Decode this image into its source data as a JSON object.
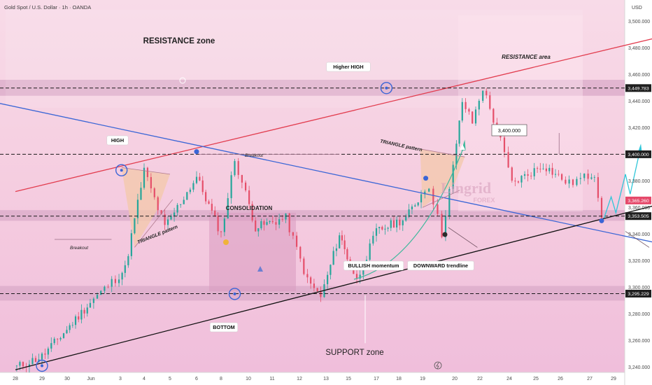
{
  "header": {
    "symbol_title": "Gold Spot / U.S. Dollar · 1h · OANDA",
    "currency": "USD"
  },
  "colors": {
    "background_pink": "#f6cfe2",
    "zone_band": "#d9a9c8",
    "bull_candle": "#26a69a",
    "bear_candle": "#e54f6a",
    "resistance_line": "#e23d4f",
    "downtrend_line": "#3b66d6",
    "support_line": "#111111",
    "marker_blue": "#3a65d6"
  },
  "chart_data": {
    "type": "candlestick",
    "x_ticks": [
      "28",
      "29",
      "30",
      "Jun",
      "3",
      "4",
      "5",
      "6",
      "8",
      "10",
      "11",
      "12",
      "13",
      "15",
      "17",
      "18",
      "19",
      "20",
      "22",
      "24",
      "25",
      "26",
      "27",
      "29"
    ],
    "y_ticks": [
      "3,500.000",
      "3,480.000",
      "3,460.000",
      "3,440.000",
      "3,420.000",
      "3,400.000",
      "3,380.000",
      "3,360.000",
      "3,340.000",
      "3,320.000",
      "3,300.000",
      "3,280.000",
      "3,260.000",
      "3,240.000"
    ],
    "ylim": [
      3236,
      3516
    ],
    "price_flags": [
      {
        "label": "3,449.783",
        "value": 3449.783,
        "style": "dark"
      },
      {
        "label": "3,400.000",
        "value": 3400.0,
        "style": "dark"
      },
      {
        "label": "3,365.260",
        "value": 3365.26,
        "style": "red"
      },
      {
        "label": "3,353.505",
        "value": 3353.505,
        "style": "dark"
      },
      {
        "label": "3,295.229",
        "value": 3295.229,
        "style": "dark"
      }
    ],
    "zones": [
      {
        "name": "resistance-band",
        "low": 3444,
        "high": 3456
      },
      {
        "name": "mid-band",
        "low": 3350,
        "high": 3358
      },
      {
        "name": "support-band",
        "low": 3290,
        "high": 3301
      }
    ],
    "key_points": [
      {
        "day": 0.05,
        "price": 3240
      },
      {
        "day": 1.0,
        "price": 3248
      },
      {
        "day": 4.2,
        "price": 3314
      },
      {
        "day": 5.0,
        "price": 3388
      },
      {
        "day": 5.8,
        "price": 3345
      },
      {
        "day": 7.0,
        "price": 3383
      },
      {
        "day": 8.0,
        "price": 3340
      },
      {
        "day": 8.5,
        "price": 3396
      },
      {
        "day": 9.3,
        "price": 3345
      },
      {
        "day": 10.5,
        "price": 3352
      },
      {
        "day": 11.3,
        "price": 3305
      },
      {
        "day": 11.8,
        "price": 3293
      },
      {
        "day": 12.6,
        "price": 3340
      },
      {
        "day": 13.3,
        "price": 3305
      },
      {
        "day": 14.0,
        "price": 3342
      },
      {
        "day": 15.3,
        "price": 3352
      },
      {
        "day": 16.2,
        "price": 3377
      },
      {
        "day": 16.6,
        "price": 3340
      },
      {
        "day": 17.3,
        "price": 3440
      },
      {
        "day": 17.7,
        "price": 3424
      },
      {
        "day": 18.1,
        "price": 3450
      },
      {
        "day": 18.7,
        "price": 3410
      },
      {
        "day": 19.1,
        "price": 3378
      },
      {
        "day": 20.3,
        "price": 3392
      },
      {
        "day": 21.3,
        "price": 3378
      },
      {
        "day": 22.2,
        "price": 3386
      },
      {
        "day": 22.5,
        "price": 3352
      }
    ],
    "trendlines": [
      {
        "name": "resistance-line",
        "from": {
          "day": 0,
          "price": 3372
        },
        "to": {
          "day": 30.5,
          "price": 3512
        }
      },
      {
        "name": "downward-trendline",
        "from": {
          "day": -1,
          "price": 3440
        },
        "to": {
          "day": 31.5,
          "price": 3308
        }
      },
      {
        "name": "support-line",
        "from": {
          "day": 0,
          "price": 3238
        },
        "to": {
          "day": 30.5,
          "price": 3388
        }
      }
    ],
    "annotations": {
      "resistance_zone": "RESISTANCE zone",
      "resistance_area": "RESISTANCE area",
      "higher_high": "Higher HIGH",
      "high": "HIGH",
      "breakout_top": "Breakout",
      "breakout_left": "Breakout",
      "triangle_left": "TRIANGLE pattern",
      "triangle_right": "TRIANGLE pattern",
      "consolidation": "CONSOLIDATION",
      "bullish_momentum": "BULLISH momentum",
      "downward_trendline": "DOWNWARD trendline",
      "bottom": "BOTTOM",
      "support_zone": "SUPPORT zone",
      "target_label": "3,400.000",
      "watermark_main": "Lingrid",
      "watermark_sub": "FOREX"
    }
  }
}
